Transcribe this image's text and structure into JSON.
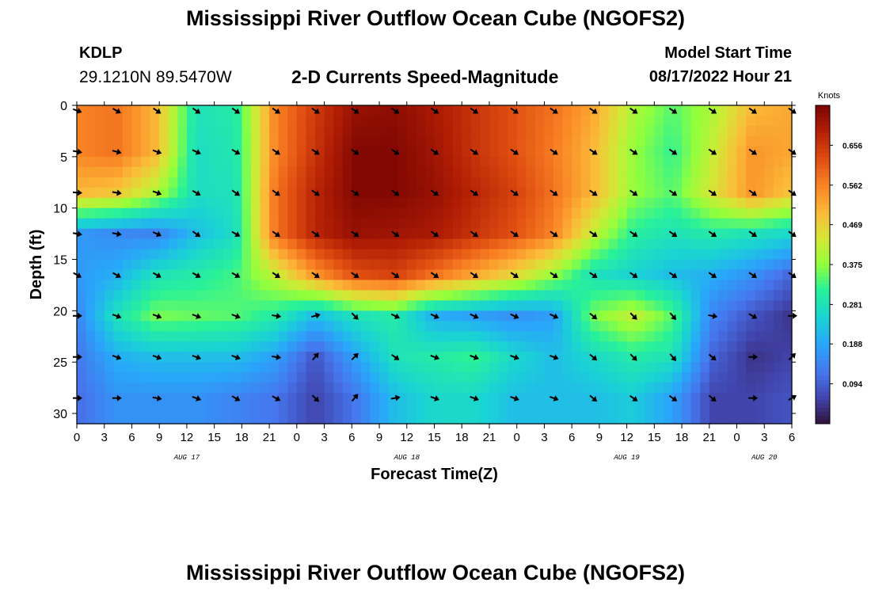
{
  "page": {
    "title": "Mississippi River Outflow Ocean Cube (NGOFS2)",
    "station": "KDLP",
    "coords": "29.1210N  89.5470W",
    "subtitle": "2-D Currents Speed-Magnitude",
    "model_start_label": "Model Start Time",
    "model_start_value": "08/17/2022 Hour 21"
  },
  "chart_data": {
    "type": "heatmap",
    "title": "2-D Currents Speed-Magnitude",
    "xlabel": "Forecast Time(Z)",
    "ylabel": "Depth (ft)",
    "x_ticks": [
      0,
      3,
      6,
      9,
      12,
      15,
      18,
      21,
      24,
      27,
      30,
      33,
      36,
      39,
      42,
      45,
      48,
      51,
      54,
      57,
      60,
      63,
      66,
      69,
      72,
      75,
      78
    ],
    "x_tick_labels": [
      "0",
      "3",
      "6",
      "9",
      "12",
      "15",
      "18",
      "21",
      "0",
      "3",
      "6",
      "9",
      "12",
      "15",
      "18",
      "21",
      "0",
      "3",
      "6",
      "9",
      "12",
      "15",
      "18",
      "21",
      "0",
      "3",
      "6"
    ],
    "xlim": [
      0,
      78
    ],
    "date_labels": [
      {
        "x": 12,
        "text": "AUG 17"
      },
      {
        "x": 36,
        "text": "AUG 18"
      },
      {
        "x": 60,
        "text": "AUG 19"
      },
      {
        "x": 75,
        "text": "AUG 20"
      }
    ],
    "y_ticks": [
      0,
      5,
      10,
      15,
      20,
      25,
      30
    ],
    "ylim": [
      0,
      31
    ],
    "y_inverted": true,
    "colorbar": {
      "label": "Knots",
      "ticks": [
        0.656,
        0.562,
        0.469,
        0.375,
        0.281,
        0.188,
        0.094
      ],
      "range": [
        0.0,
        0.75
      ]
    },
    "depths": [
      0.5,
      4.5,
      8.5,
      12.5,
      16.5,
      20.5,
      24.5,
      28.5
    ],
    "times": [
      0,
      4.3,
      8.7,
      13,
      17.3,
      21.7,
      26,
      30.3,
      34.7,
      39,
      43.3,
      47.7,
      52,
      56.3,
      60.7,
      65,
      69.3,
      73.7,
      78
    ],
    "speed": [
      [
        0.56,
        0.58,
        0.5,
        0.28,
        0.3,
        0.56,
        0.65,
        0.72,
        0.73,
        0.7,
        0.66,
        0.62,
        0.58,
        0.52,
        0.4,
        0.34,
        0.4,
        0.5,
        0.52
      ],
      [
        0.56,
        0.58,
        0.5,
        0.27,
        0.29,
        0.56,
        0.66,
        0.74,
        0.74,
        0.71,
        0.66,
        0.62,
        0.57,
        0.5,
        0.38,
        0.32,
        0.42,
        0.54,
        0.52
      ],
      [
        0.5,
        0.48,
        0.4,
        0.27,
        0.28,
        0.58,
        0.68,
        0.74,
        0.74,
        0.72,
        0.68,
        0.64,
        0.58,
        0.5,
        0.38,
        0.34,
        0.44,
        0.54,
        0.48
      ],
      [
        0.17,
        0.15,
        0.14,
        0.22,
        0.27,
        0.58,
        0.68,
        0.72,
        0.71,
        0.7,
        0.66,
        0.62,
        0.56,
        0.42,
        0.31,
        0.28,
        0.3,
        0.28,
        0.26
      ],
      [
        0.17,
        0.2,
        0.28,
        0.3,
        0.33,
        0.42,
        0.54,
        0.62,
        0.64,
        0.58,
        0.52,
        0.46,
        0.38,
        0.28,
        0.25,
        0.22,
        0.2,
        0.16,
        0.1
      ],
      [
        0.14,
        0.28,
        0.36,
        0.35,
        0.34,
        0.3,
        0.22,
        0.28,
        0.3,
        0.2,
        0.18,
        0.16,
        0.18,
        0.36,
        0.42,
        0.34,
        0.14,
        0.08,
        0.04
      ],
      [
        0.12,
        0.2,
        0.22,
        0.22,
        0.22,
        0.18,
        0.08,
        0.18,
        0.28,
        0.3,
        0.32,
        0.26,
        0.22,
        0.26,
        0.3,
        0.28,
        0.1,
        0.04,
        0.06
      ],
      [
        0.11,
        0.16,
        0.16,
        0.16,
        0.14,
        0.12,
        0.06,
        0.12,
        0.22,
        0.26,
        0.26,
        0.22,
        0.22,
        0.22,
        0.24,
        0.18,
        0.06,
        0.06,
        0.08
      ]
    ],
    "arrow_direction_deg": [
      [
        110,
        120,
        125,
        125,
        125,
        125,
        125,
        125,
        125,
        125,
        125,
        125,
        125,
        125,
        125,
        125,
        125,
        125,
        125
      ],
      [
        100,
        105,
        110,
        115,
        120,
        125,
        125,
        125,
        125,
        125,
        125,
        125,
        125,
        125,
        125,
        125,
        125,
        125,
        125
      ],
      [
        95,
        100,
        110,
        120,
        125,
        125,
        125,
        125,
        125,
        125,
        125,
        125,
        125,
        125,
        125,
        125,
        125,
        125,
        125
      ],
      [
        100,
        100,
        115,
        125,
        120,
        125,
        125,
        125,
        125,
        125,
        125,
        125,
        125,
        125,
        125,
        125,
        125,
        125,
        125
      ],
      [
        120,
        120,
        120,
        120,
        120,
        125,
        125,
        125,
        125,
        125,
        125,
        125,
        125,
        125,
        125,
        125,
        125,
        125,
        125
      ],
      [
        90,
        110,
        110,
        110,
        110,
        100,
        75,
        135,
        115,
        115,
        115,
        115,
        115,
        130,
        135,
        140,
        100,
        120,
        90
      ],
      [
        90,
        110,
        110,
        110,
        110,
        100,
        40,
        45,
        125,
        110,
        110,
        110,
        110,
        130,
        135,
        140,
        130,
        90,
        45
      ],
      [
        90,
        90,
        100,
        110,
        120,
        120,
        135,
        40,
        80,
        110,
        110,
        110,
        110,
        130,
        125,
        125,
        130,
        90,
        60
      ]
    ]
  }
}
